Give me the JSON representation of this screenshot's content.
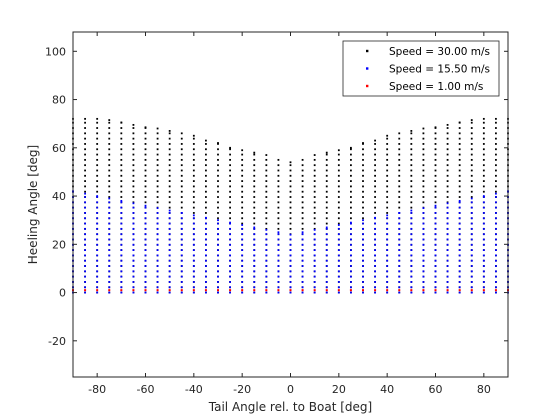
{
  "chart_data": {
    "type": "scatter",
    "xlabel": "Tail Angle rel. to Boat [deg]",
    "ylabel": "Heeling Angle [deg]",
    "xlim": [
      -90,
      90
    ],
    "ylim": [
      -35,
      108
    ],
    "xticks": [
      -80,
      -60,
      -40,
      -20,
      0,
      20,
      40,
      60,
      80
    ],
    "yticks": [
      -20,
      0,
      20,
      40,
      60,
      80,
      100
    ],
    "grid": false,
    "box": true,
    "legend_position": "top-right",
    "tail_angles": [
      -90,
      -85,
      -80,
      -75,
      -70,
      -65,
      -60,
      -55,
      -50,
      -45,
      -40,
      -35,
      -30,
      -25,
      -20,
      -15,
      -10,
      -5,
      0,
      5,
      10,
      15,
      20,
      25,
      30,
      35,
      40,
      45,
      50,
      55,
      60,
      65,
      70,
      75,
      80,
      85,
      90
    ],
    "series": [
      {
        "name": "Speed = 30.00 m/s",
        "color": "#000000",
        "max_heel": [
          72,
          72,
          72,
          71.5,
          70.5,
          69.5,
          68.5,
          68,
          67,
          66,
          65,
          63,
          62,
          60,
          59,
          58,
          57,
          55,
          54,
          55,
          57,
          58,
          59,
          60,
          62,
          63,
          65,
          66,
          67,
          68,
          68.5,
          69.5,
          70.5,
          71.5,
          72,
          72,
          72
        ]
      },
      {
        "name": "Speed = 15.50 m/s",
        "color": "#0000ff",
        "max_heel": [
          42,
          41,
          40,
          39,
          38,
          37,
          36,
          35,
          34,
          33,
          32,
          31,
          30,
          29,
          28,
          27,
          26,
          25,
          24,
          25,
          26,
          27,
          28,
          29,
          30,
          31,
          32,
          33,
          34,
          35,
          36,
          37,
          38,
          39,
          40,
          41,
          42
        ]
      },
      {
        "name": "Speed = 1.00 m/s",
        "color": "#ff0000",
        "max_heel": [
          1,
          1,
          1,
          1,
          1,
          1,
          1,
          1,
          1,
          1,
          1,
          1,
          1,
          1,
          1,
          1,
          1,
          1,
          1,
          1,
          1,
          1,
          1,
          1,
          1,
          1,
          1,
          1,
          1,
          1,
          1,
          1,
          1,
          1,
          1,
          1,
          1
        ]
      }
    ]
  }
}
